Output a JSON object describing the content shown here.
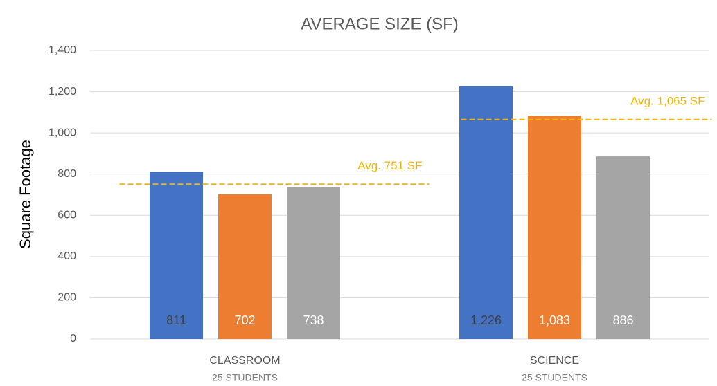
{
  "chart_data": {
    "type": "bar",
    "title": "AVERAGE SIZE (SF)",
    "y_label": "Square Footage",
    "categories": [
      "CLASSROOM",
      "SCIENCE"
    ],
    "category_sublabels": [
      "25 STUDENTS",
      "25 STUDENTS"
    ],
    "series": [
      {
        "color": "#4472c4",
        "label_color": "#404040",
        "values": [
          811,
          1226
        ],
        "value_labels": [
          "811",
          "1,226"
        ]
      },
      {
        "color": "#ed7d31",
        "label_color": "#ffffff",
        "values": [
          702,
          1083
        ],
        "value_labels": [
          "702",
          "1,083"
        ]
      },
      {
        "color": "#a5a5a5",
        "label_color": "#ffffff",
        "values": [
          738,
          886
        ],
        "value_labels": [
          "738",
          "886"
        ]
      }
    ],
    "annotations": [
      {
        "label": "Avg. 751 SF",
        "value": 751,
        "color": "#f2b600"
      },
      {
        "label": "Avg. 1,065 SF",
        "value": 1065,
        "color": "#f2b600"
      }
    ],
    "ylim": [
      0,
      1400
    ],
    "yticks": [
      0,
      200,
      400,
      600,
      800,
      {
        "value": 1000,
        "label": "1,000"
      },
      {
        "value": 1200,
        "label": "1,200"
      },
      {
        "value": 1400,
        "label": "1,400"
      }
    ],
    "grid": true
  }
}
